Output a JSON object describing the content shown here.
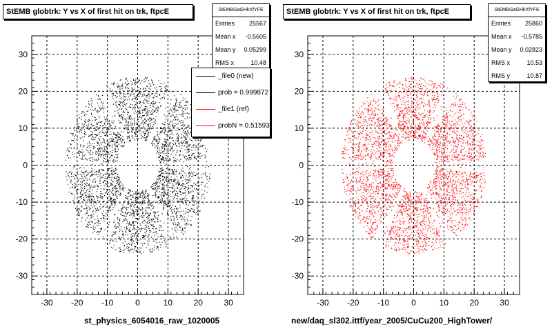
{
  "chart_data": [
    {
      "type": "scatter",
      "title": "StEMB globtrk: Y vs X of first hit on trk, ftpcE",
      "xlabel": "st_physics_6054016_raw_1020005",
      "ylabel": "",
      "xlim": [
        -35,
        35
      ],
      "ylim": [
        -35,
        35
      ],
      "xticks": [
        -30,
        -20,
        -10,
        0,
        10,
        20,
        30
      ],
      "yticks": [
        -30,
        -20,
        -10,
        0,
        10,
        20,
        30
      ],
      "grid": true,
      "color": "#000000",
      "distribution": {
        "inner_radius": 7,
        "outer_radius": 24,
        "sectors": 6
      },
      "stats": {
        "name": "StEMBGaGHkXfYFE",
        "rows": [
          {
            "label": "Entries",
            "value": "25567"
          },
          {
            "label": "Mean x",
            "value": "-0.5605"
          },
          {
            "label": "Mean y",
            "value": "0.05299"
          },
          {
            "label": "RMS x",
            "value": "10.48"
          }
        ]
      },
      "legend": {
        "entries": [
          {
            "label": "_file0 (new)",
            "color": "#000000"
          },
          {
            "label": "prob = 0.999872",
            "color": "#000000"
          },
          {
            "label": "_file1 (ref)",
            "color": "#ff0000"
          },
          {
            "label": "probN = 0.515932",
            "color": "#ff0000"
          }
        ]
      }
    },
    {
      "type": "scatter",
      "title": "StEMB globtrk: Y vs X of first hit on trk, ftpcE",
      "xlabel": "new/daq_sl302.ittf/year_2005/CuCu200_HighTower/",
      "ylabel": "",
      "xlim": [
        -35,
        35
      ],
      "ylim": [
        -35,
        35
      ],
      "xticks": [
        -30,
        -20,
        -10,
        0,
        10,
        20,
        30
      ],
      "yticks": [
        -30,
        -20,
        -10,
        0,
        10,
        20,
        30
      ],
      "grid": true,
      "color": "#ff0000",
      "distribution": {
        "inner_radius": 7,
        "outer_radius": 24,
        "sectors": 6
      },
      "stats": {
        "name": "StEMBGaGHkXfYFE",
        "rows": [
          {
            "label": "Entries",
            "value": "25860"
          },
          {
            "label": "Mean x",
            "value": "-0.5785"
          },
          {
            "label": "Mean y",
            "value": "0.02823"
          },
          {
            "label": "RMS x",
            "value": "10.53"
          },
          {
            "label": "RMS y",
            "value": "10.87"
          }
        ]
      }
    }
  ]
}
